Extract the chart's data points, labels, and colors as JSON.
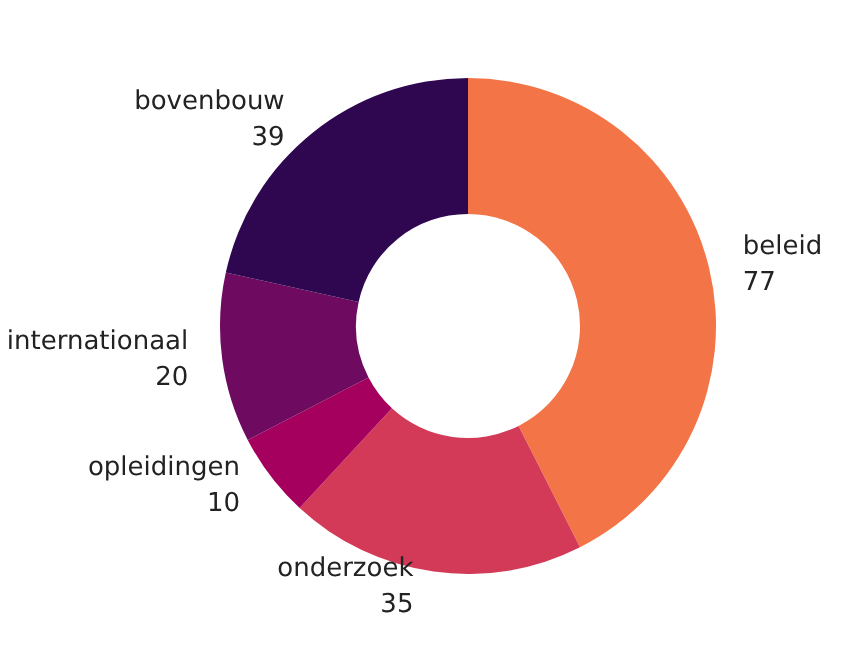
{
  "chart_data": {
    "type": "donut",
    "categories": [
      "beleid",
      "onderzoek",
      "opleidingen",
      "internationaal",
      "bovenbouw"
    ],
    "values": [
      77,
      35,
      10,
      20,
      39
    ],
    "colors": [
      "#f37547",
      "#d33a57",
      "#a5005e",
      "#6e0a5f",
      "#2f0750"
    ],
    "data_labels": true,
    "legend": false
  }
}
